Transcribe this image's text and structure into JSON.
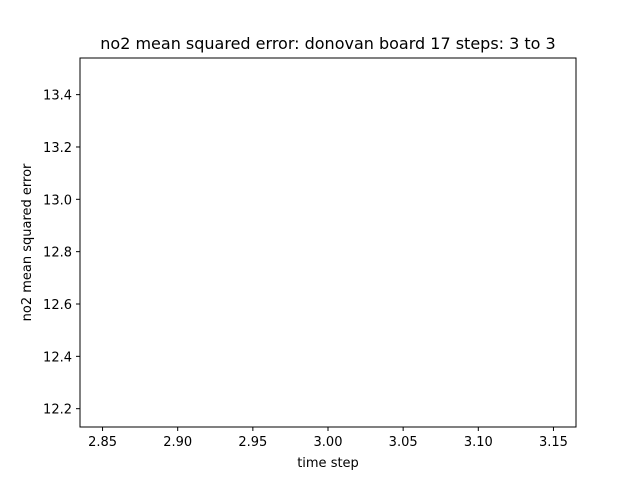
{
  "chart_data": {
    "type": "line",
    "title": "no2 mean squared error: donovan board 17 steps: 3 to 3",
    "xlabel": "time step",
    "ylabel": "no2 mean squared error",
    "xlim": [
      2.835,
      3.165
    ],
    "ylim": [
      12.13,
      13.54
    ],
    "x_ticks": [
      2.85,
      2.9,
      2.95,
      3.0,
      3.05,
      3.1,
      3.15
    ],
    "x_tick_labels": [
      "2.85",
      "2.90",
      "2.95",
      "3.00",
      "3.05",
      "3.10",
      "3.15"
    ],
    "y_ticks": [
      12.2,
      12.4,
      12.6,
      12.8,
      13.0,
      13.2,
      13.4
    ],
    "y_tick_labels": [
      "12.2",
      "12.4",
      "12.6",
      "12.8",
      "13.0",
      "13.2",
      "13.4"
    ],
    "grid": false,
    "series": [
      {
        "x": [],
        "y": []
      }
    ]
  }
}
